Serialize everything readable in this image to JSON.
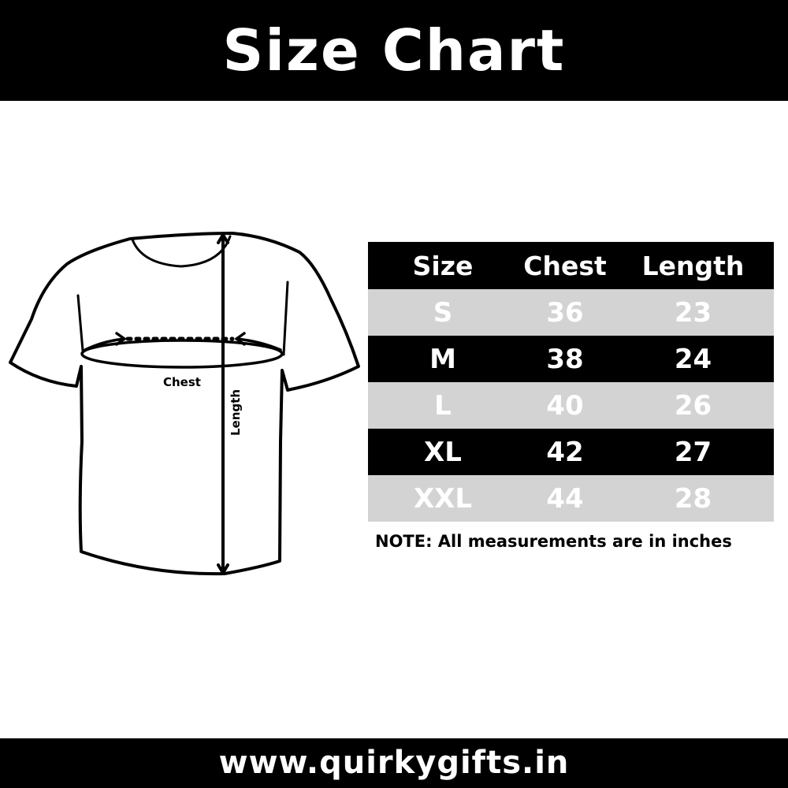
{
  "header": {
    "title": "Size Chart"
  },
  "diagram": {
    "chest_label": "Chest",
    "length_label": "Length"
  },
  "table": {
    "columns": [
      "Size",
      "Chest",
      "Length"
    ],
    "rows": [
      [
        "S",
        "36",
        "23"
      ],
      [
        "M",
        "38",
        "24"
      ],
      [
        "L",
        "40",
        "26"
      ],
      [
        "XL",
        "42",
        "27"
      ],
      [
        "XXL",
        "44",
        "28"
      ]
    ]
  },
  "note": "NOTE: All measurements are in inches",
  "footer": {
    "website": "www.quirkygifts.in"
  },
  "colors": {
    "header_bg": "#000000",
    "row_light": "#d3d3d3",
    "row_dark": "#000000"
  }
}
